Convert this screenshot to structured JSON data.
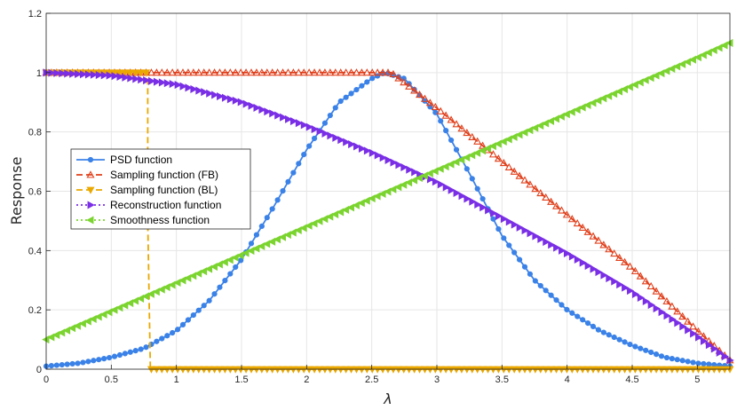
{
  "chart_data": {
    "type": "line",
    "title": "",
    "xlabel": "λ",
    "ylabel": "Response",
    "xlim": [
      0,
      5.25
    ],
    "ylim": [
      0,
      1.2
    ],
    "xticks": [
      "0",
      "0.5",
      "1",
      "1.5",
      "2",
      "2.5",
      "3",
      "3.5",
      "4",
      "4.5",
      "5"
    ],
    "yticks": [
      "0",
      "0.2",
      "0.4",
      "0.6",
      "0.8",
      "1",
      "1.2"
    ],
    "grid": true,
    "legend_position": "middle-left",
    "series": [
      {
        "name": "PSD function",
        "color": "#3b82e8",
        "marker": "circle",
        "dash": "solid",
        "x": [
          0,
          0.25,
          0.5,
          0.75,
          1.0,
          1.25,
          1.5,
          1.75,
          2.0,
          2.25,
          2.5,
          2.6,
          2.75,
          3.0,
          3.25,
          3.5,
          3.75,
          4.0,
          4.25,
          4.5,
          4.75,
          5.0,
          5.25
        ],
        "y": [
          0.01,
          0.02,
          0.04,
          0.07,
          0.13,
          0.23,
          0.37,
          0.55,
          0.74,
          0.9,
          0.98,
          1.0,
          0.98,
          0.86,
          0.66,
          0.45,
          0.3,
          0.2,
          0.13,
          0.08,
          0.04,
          0.02,
          0.01
        ]
      },
      {
        "name": "Sampling function (FB)",
        "color": "#e0401c",
        "marker": "triangle-up",
        "dash": "dashed",
        "x": [
          0,
          0.5,
          1.0,
          1.5,
          2.0,
          2.5,
          2.65,
          3.0,
          3.5,
          4.0,
          4.5,
          5.0,
          5.25
        ],
        "y": [
          1.0,
          1.0,
          1.0,
          1.0,
          1.0,
          1.0,
          1.0,
          0.88,
          0.7,
          0.52,
          0.34,
          0.13,
          0.03
        ]
      },
      {
        "name": "Sampling function (BL)",
        "color": "#eaa800",
        "marker": "triangle-down",
        "dash": "dashed",
        "x": [
          0,
          0.4,
          0.78,
          0.78,
          0.8,
          1.5,
          2.0,
          2.5,
          3.0,
          3.5,
          4.0,
          4.5,
          5.0,
          5.25
        ],
        "y": [
          1.0,
          1.0,
          1.0,
          0.5,
          0.0,
          0.0,
          0.0,
          0.0,
          0.0,
          0.0,
          0.0,
          0.0,
          0.0,
          0.0
        ]
      },
      {
        "name": "Reconstruction function",
        "color": "#7a2fe6",
        "marker": "triangle-right",
        "dash": "dotted",
        "x": [
          0,
          0.5,
          1.0,
          1.5,
          2.0,
          2.5,
          3.0,
          3.5,
          4.0,
          4.5,
          5.0,
          5.25
        ],
        "y": [
          1.0,
          0.99,
          0.96,
          0.9,
          0.82,
          0.73,
          0.63,
          0.51,
          0.39,
          0.26,
          0.11,
          0.03
        ]
      },
      {
        "name": "Smoothness function",
        "color": "#7bd42f",
        "marker": "triangle-left",
        "dash": "dotted",
        "x": [
          0,
          0.5,
          1.0,
          1.5,
          2.0,
          2.5,
          3.0,
          3.5,
          4.0,
          4.5,
          5.0,
          5.25
        ],
        "y": [
          0.1,
          0.195,
          0.29,
          0.385,
          0.48,
          0.575,
          0.67,
          0.765,
          0.86,
          0.955,
          1.05,
          1.1
        ]
      }
    ]
  }
}
